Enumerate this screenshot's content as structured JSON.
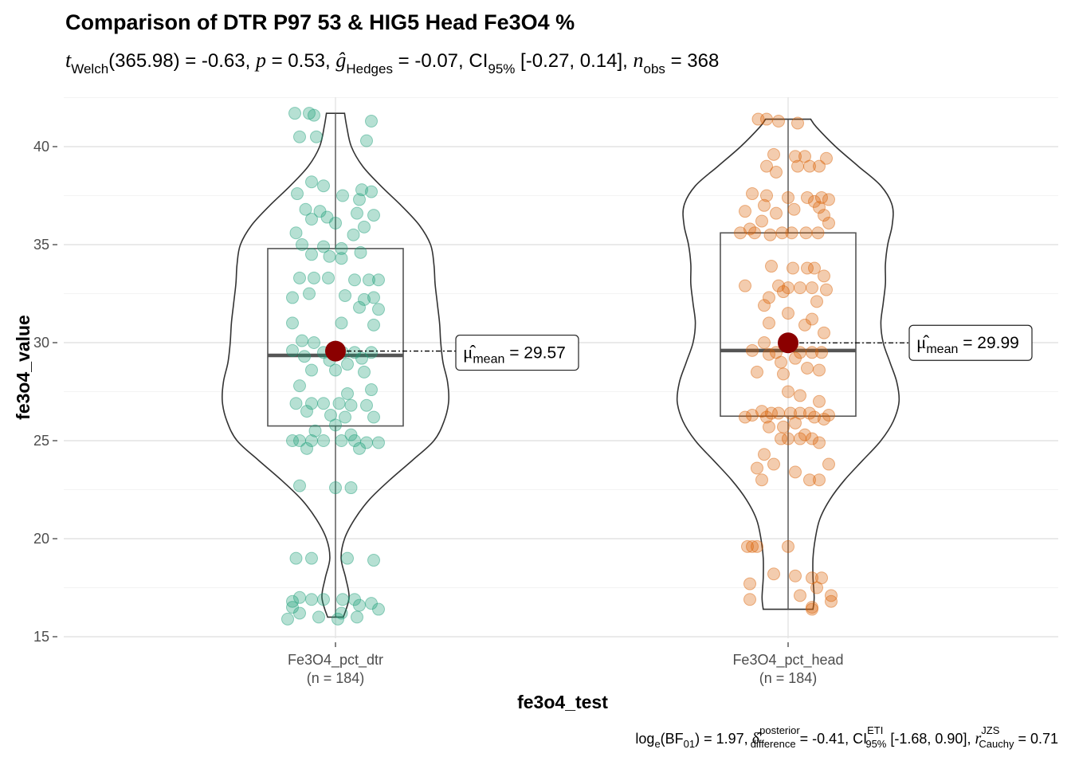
{
  "chart_data": {
    "type": "violin-box-jitter",
    "title": "Comparison of DTR P97 53 & HIG5 Head Fe3O4 %",
    "subtitle": {
      "stat_name": "Welch",
      "statistic": "(365.98) = -0.63, ",
      "p_value": " = 0.53, ",
      "effsize_name": "Hedges",
      "effsize": " = -0.07, CI",
      "ci_level": "95%",
      "ci": " [-0.27, 0.14], ",
      "n_name": "obs",
      "n_value": " = 368"
    },
    "caption": {
      "bf_part1": "log",
      "bf_sub1": "e",
      "bf_part2": "(BF",
      "bf_sub2": "01",
      "bf_part3": ") = 1.97, ",
      "delta_sup": "posterior",
      "delta_sub": "difference",
      "delta_value": " = -0.41, CI",
      "ci_sup": "ETI",
      "ci_sub": "95%",
      "ci_value": " [-1.68, 0.90], ",
      "r_sup": "JZS",
      "r_sub": "Cauchy",
      "r_value": " = 0.71"
    },
    "xlabel": "fe3o4_test",
    "ylabel": "fe3o4_value",
    "ylim": [
      15,
      42
    ],
    "yticks": [
      "15",
      "20",
      "25",
      "30",
      "35",
      "40"
    ],
    "grid": true,
    "legend": "none",
    "mean_label_prefix": "mean",
    "groups": [
      {
        "name": "Fe3O4_pct_dtr",
        "n_label": "(n = 184)",
        "color": "#1B9E77",
        "mean": 29.57,
        "mean_label": " = 29.57",
        "box": {
          "q1": 25.75,
          "median": 29.35,
          "q3": 34.8,
          "whisker_low": 16.0,
          "whisker_high": 41.7
        },
        "violin_profile": [
          [
            16.0,
            0.07
          ],
          [
            17.0,
            0.12
          ],
          [
            18.0,
            0.09
          ],
          [
            19.0,
            0.05
          ],
          [
            20.0,
            0.08
          ],
          [
            21.0,
            0.17
          ],
          [
            22.0,
            0.3
          ],
          [
            23.0,
            0.48
          ],
          [
            24.0,
            0.68
          ],
          [
            25.0,
            0.87
          ],
          [
            26.0,
            0.96
          ],
          [
            27.0,
            1.0
          ],
          [
            28.0,
            0.99
          ],
          [
            29.0,
            0.95
          ],
          [
            30.0,
            0.93
          ],
          [
            31.0,
            0.92
          ],
          [
            32.0,
            0.9
          ],
          [
            33.0,
            0.88
          ],
          [
            34.0,
            0.87
          ],
          [
            35.0,
            0.84
          ],
          [
            36.0,
            0.74
          ],
          [
            37.0,
            0.58
          ],
          [
            38.0,
            0.4
          ],
          [
            39.0,
            0.24
          ],
          [
            40.0,
            0.14
          ],
          [
            41.0,
            0.1
          ],
          [
            41.7,
            0.08
          ]
        ],
        "points": [
          [
            41.7,
            -0.34
          ],
          [
            41.7,
            -0.22
          ],
          [
            41.6,
            -0.18
          ],
          [
            41.3,
            0.3
          ],
          [
            40.5,
            -0.3
          ],
          [
            40.5,
            -0.16
          ],
          [
            40.3,
            0.26
          ],
          [
            38.2,
            -0.2
          ],
          [
            38.0,
            -0.1
          ],
          [
            37.8,
            0.22
          ],
          [
            37.7,
            0.3
          ],
          [
            37.6,
            -0.32
          ],
          [
            37.5,
            0.06
          ],
          [
            37.3,
            0.2
          ],
          [
            36.8,
            -0.25
          ],
          [
            36.7,
            -0.13
          ],
          [
            36.6,
            0.18
          ],
          [
            36.5,
            0.32
          ],
          [
            36.4,
            -0.07
          ],
          [
            36.3,
            -0.2
          ],
          [
            36.1,
            0.0
          ],
          [
            35.9,
            0.24
          ],
          [
            35.6,
            -0.33
          ],
          [
            35.5,
            0.15
          ],
          [
            35.0,
            -0.28
          ],
          [
            34.9,
            -0.1
          ],
          [
            34.8,
            0.05
          ],
          [
            34.6,
            0.21
          ],
          [
            34.5,
            -0.2
          ],
          [
            34.4,
            -0.05
          ],
          [
            34.3,
            0.05
          ],
          [
            33.3,
            -0.3
          ],
          [
            33.3,
            -0.18
          ],
          [
            33.3,
            -0.06
          ],
          [
            33.2,
            0.16
          ],
          [
            33.2,
            0.28
          ],
          [
            33.2,
            0.36
          ],
          [
            32.5,
            -0.22
          ],
          [
            32.4,
            0.08
          ],
          [
            32.3,
            -0.36
          ],
          [
            32.3,
            0.32
          ],
          [
            32.2,
            0.24
          ],
          [
            31.8,
            0.2
          ],
          [
            31.7,
            0.36
          ],
          [
            31.0,
            -0.36
          ],
          [
            31.0,
            0.05
          ],
          [
            30.9,
            0.32
          ],
          [
            30.1,
            -0.28
          ],
          [
            30.0,
            -0.18
          ],
          [
            29.6,
            -0.36
          ],
          [
            29.5,
            -0.1
          ],
          [
            29.5,
            0.06
          ],
          [
            29.5,
            0.16
          ],
          [
            29.5,
            0.3
          ],
          [
            29.3,
            -0.26
          ],
          [
            29.2,
            0.22
          ],
          [
            29.1,
            -0.05
          ],
          [
            28.9,
            0.1
          ],
          [
            28.6,
            -0.2
          ],
          [
            28.6,
            0.0
          ],
          [
            28.5,
            0.24
          ],
          [
            27.8,
            -0.3
          ],
          [
            27.6,
            0.3
          ],
          [
            27.4,
            0.1
          ],
          [
            26.9,
            -0.33
          ],
          [
            26.9,
            -0.2
          ],
          [
            26.9,
            -0.1
          ],
          [
            26.9,
            0.03
          ],
          [
            26.8,
            0.13
          ],
          [
            26.8,
            0.26
          ],
          [
            26.5,
            -0.24
          ],
          [
            26.3,
            -0.04
          ],
          [
            26.2,
            0.08
          ],
          [
            26.2,
            0.32
          ],
          [
            25.8,
            0.0
          ],
          [
            25.5,
            -0.17
          ],
          [
            25.3,
            0.13
          ],
          [
            25.0,
            -0.36
          ],
          [
            25.0,
            -0.3
          ],
          [
            25.0,
            -0.2
          ],
          [
            25.0,
            -0.1
          ],
          [
            25.0,
            0.05
          ],
          [
            25.0,
            0.16
          ],
          [
            24.9,
            0.26
          ],
          [
            24.9,
            0.36
          ],
          [
            24.6,
            -0.24
          ],
          [
            24.6,
            0.2
          ],
          [
            22.7,
            -0.3
          ],
          [
            22.6,
            0.0
          ],
          [
            22.6,
            0.13
          ],
          [
            19.0,
            -0.33
          ],
          [
            19.0,
            -0.2
          ],
          [
            19.0,
            0.1
          ],
          [
            18.9,
            0.32
          ],
          [
            17.0,
            -0.3
          ],
          [
            16.9,
            -0.2
          ],
          [
            16.9,
            -0.1
          ],
          [
            16.9,
            0.06
          ],
          [
            16.9,
            0.16
          ],
          [
            16.8,
            -0.36
          ],
          [
            16.7,
            0.3
          ],
          [
            16.6,
            0.2
          ],
          [
            16.5,
            -0.36
          ],
          [
            16.4,
            0.36
          ],
          [
            16.2,
            -0.3
          ],
          [
            16.2,
            0.05
          ],
          [
            16.0,
            -0.14
          ],
          [
            16.0,
            0.18
          ],
          [
            15.9,
            -0.4
          ],
          [
            15.9,
            0.02
          ]
        ]
      },
      {
        "name": "Fe3O4_pct_head",
        "n_label": "(n = 184)",
        "color": "#D95F02",
        "mean": 29.99,
        "mean_label": " = 29.99",
        "box": {
          "q1": 26.25,
          "median": 29.6,
          "q3": 35.6,
          "whisker_low": 16.4,
          "whisker_high": 41.4
        },
        "violin_profile": [
          [
            16.4,
            0.22
          ],
          [
            17.0,
            0.23
          ],
          [
            18.0,
            0.22
          ],
          [
            19.0,
            0.22
          ],
          [
            20.0,
            0.24
          ],
          [
            21.0,
            0.28
          ],
          [
            22.0,
            0.37
          ],
          [
            23.0,
            0.5
          ],
          [
            24.0,
            0.66
          ],
          [
            25.0,
            0.82
          ],
          [
            26.0,
            0.93
          ],
          [
            27.0,
            0.98
          ],
          [
            28.0,
            0.96
          ],
          [
            29.0,
            0.9
          ],
          [
            30.0,
            0.84
          ],
          [
            31.0,
            0.82
          ],
          [
            32.0,
            0.84
          ],
          [
            33.0,
            0.86
          ],
          [
            34.0,
            0.86
          ],
          [
            35.0,
            0.88
          ],
          [
            36.0,
            0.92
          ],
          [
            37.0,
            0.92
          ],
          [
            38.0,
            0.82
          ],
          [
            39.0,
            0.62
          ],
          [
            40.0,
            0.42
          ],
          [
            41.0,
            0.25
          ],
          [
            41.4,
            0.2
          ]
        ],
        "points": [
          [
            41.4,
            -0.25
          ],
          [
            41.4,
            -0.18
          ],
          [
            41.3,
            -0.08
          ],
          [
            41.2,
            0.08
          ],
          [
            39.6,
            -0.12
          ],
          [
            39.5,
            0.06
          ],
          [
            39.5,
            0.14
          ],
          [
            39.4,
            0.32
          ],
          [
            39.0,
            -0.18
          ],
          [
            39.0,
            0.08
          ],
          [
            39.0,
            0.18
          ],
          [
            39.0,
            0.26
          ],
          [
            38.7,
            -0.1
          ],
          [
            37.6,
            -0.3
          ],
          [
            37.5,
            -0.18
          ],
          [
            37.4,
            0.0
          ],
          [
            37.4,
            0.16
          ],
          [
            37.4,
            0.28
          ],
          [
            37.3,
            0.34
          ],
          [
            37.2,
            0.22
          ],
          [
            37.0,
            -0.2
          ],
          [
            36.9,
            0.26
          ],
          [
            36.8,
            0.05
          ],
          [
            36.7,
            -0.36
          ],
          [
            36.6,
            -0.1
          ],
          [
            36.5,
            0.3
          ],
          [
            36.2,
            -0.22
          ],
          [
            36.1,
            0.34
          ],
          [
            35.8,
            -0.32
          ],
          [
            35.6,
            -0.4
          ],
          [
            35.6,
            -0.28
          ],
          [
            35.6,
            -0.05
          ],
          [
            35.6,
            0.03
          ],
          [
            35.6,
            0.15
          ],
          [
            35.6,
            0.25
          ],
          [
            35.5,
            -0.15
          ],
          [
            33.9,
            -0.14
          ],
          [
            33.8,
            0.04
          ],
          [
            33.8,
            0.16
          ],
          [
            33.8,
            0.22
          ],
          [
            33.4,
            0.3
          ],
          [
            32.9,
            -0.36
          ],
          [
            32.9,
            -0.08
          ],
          [
            32.8,
            0.0
          ],
          [
            32.8,
            0.1
          ],
          [
            32.8,
            0.2
          ],
          [
            32.7,
            0.32
          ],
          [
            32.6,
            -0.04
          ],
          [
            32.3,
            -0.16
          ],
          [
            32.1,
            0.24
          ],
          [
            31.9,
            -0.2
          ],
          [
            31.5,
            0.0
          ],
          [
            31.2,
            0.2
          ],
          [
            31.0,
            -0.16
          ],
          [
            30.9,
            0.14
          ],
          [
            30.5,
            0.3
          ],
          [
            30.0,
            -0.2
          ],
          [
            29.6,
            -0.3
          ],
          [
            29.5,
            -0.1
          ],
          [
            29.5,
            0.1
          ],
          [
            29.5,
            0.2
          ],
          [
            29.5,
            0.28
          ],
          [
            29.4,
            -0.16
          ],
          [
            29.2,
            0.06
          ],
          [
            29.0,
            -0.06
          ],
          [
            28.7,
            0.16
          ],
          [
            28.6,
            0.26
          ],
          [
            28.5,
            -0.26
          ],
          [
            28.4,
            -0.04
          ],
          [
            27.5,
            0.0
          ],
          [
            27.3,
            0.1
          ],
          [
            27.0,
            0.26
          ],
          [
            26.5,
            -0.22
          ],
          [
            26.4,
            -0.14
          ],
          [
            26.4,
            -0.08
          ],
          [
            26.4,
            0.02
          ],
          [
            26.4,
            0.1
          ],
          [
            26.4,
            0.18
          ],
          [
            26.3,
            -0.3
          ],
          [
            26.3,
            0.34
          ],
          [
            26.2,
            -0.36
          ],
          [
            26.2,
            -0.18
          ],
          [
            26.2,
            0.22
          ],
          [
            26.1,
            0.3
          ],
          [
            25.9,
            0.06
          ],
          [
            25.7,
            -0.04
          ],
          [
            25.7,
            -0.16
          ],
          [
            25.3,
            0.14
          ],
          [
            25.1,
            -0.06
          ],
          [
            25.1,
            0.0
          ],
          [
            25.1,
            0.1
          ],
          [
            25.1,
            0.2
          ],
          [
            24.9,
            0.26
          ],
          [
            24.3,
            -0.2
          ],
          [
            23.8,
            -0.12
          ],
          [
            23.8,
            0.34
          ],
          [
            23.6,
            -0.26
          ],
          [
            23.4,
            0.06
          ],
          [
            23.0,
            -0.22
          ],
          [
            23.0,
            0.18
          ],
          [
            23.0,
            0.26
          ],
          [
            19.6,
            -0.34
          ],
          [
            19.6,
            -0.3
          ],
          [
            19.6,
            -0.26
          ],
          [
            19.6,
            0.0
          ],
          [
            18.2,
            -0.12
          ],
          [
            18.1,
            0.06
          ],
          [
            18.0,
            0.2
          ],
          [
            18.0,
            0.28
          ],
          [
            17.7,
            -0.32
          ],
          [
            17.5,
            0.24
          ],
          [
            17.1,
            0.1
          ],
          [
            17.1,
            0.36
          ],
          [
            16.9,
            -0.32
          ],
          [
            16.8,
            0.36
          ],
          [
            16.5,
            0.2
          ],
          [
            16.4,
            0.2
          ]
        ]
      }
    ]
  }
}
